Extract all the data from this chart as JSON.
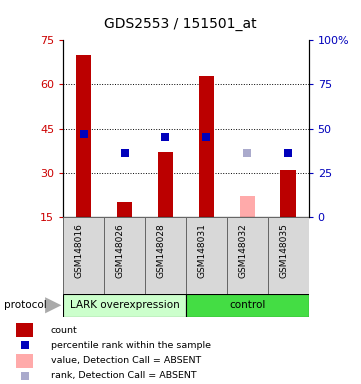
{
  "title": "GDS2553 / 151501_at",
  "samples": [
    "GSM148016",
    "GSM148026",
    "GSM148028",
    "GSM148031",
    "GSM148032",
    "GSM148035"
  ],
  "counts": [
    70,
    20,
    37,
    63,
    22,
    31
  ],
  "percentile_ranks": [
    47,
    36,
    45,
    45,
    36,
    36
  ],
  "absent_flags": [
    false,
    false,
    false,
    false,
    true,
    false
  ],
  "ylim_left": [
    15,
    75
  ],
  "ylim_right": [
    0,
    100
  ],
  "yticks_left": [
    15,
    30,
    45,
    60,
    75
  ],
  "yticks_right": [
    0,
    25,
    50,
    75,
    100
  ],
  "ytick_right_labels": [
    "0",
    "25",
    "50",
    "75",
    "100%"
  ],
  "group1_label": "LARK overexpression",
  "group2_label": "control",
  "group1_color": "#ccffcc",
  "group2_color": "#44dd44",
  "bar_color_present": "#bb0000",
  "bar_color_absent": "#ffaaaa",
  "rank_color_present": "#0000bb",
  "rank_color_absent": "#aaaacc",
  "sample_bg_color": "#d8d8d8",
  "bar_width": 0.38,
  "rank_marker_size": 40,
  "left_axis_color": "#cc0000",
  "right_axis_color": "#0000bb",
  "protocol_label": "protocol",
  "legend_items": [
    {
      "label": "count",
      "color": "#bb0000",
      "type": "bar"
    },
    {
      "label": "percentile rank within the sample",
      "color": "#0000bb",
      "type": "square"
    },
    {
      "label": "value, Detection Call = ABSENT",
      "color": "#ffaaaa",
      "type": "bar"
    },
    {
      "label": "rank, Detection Call = ABSENT",
      "color": "#aaaacc",
      "type": "square"
    }
  ]
}
